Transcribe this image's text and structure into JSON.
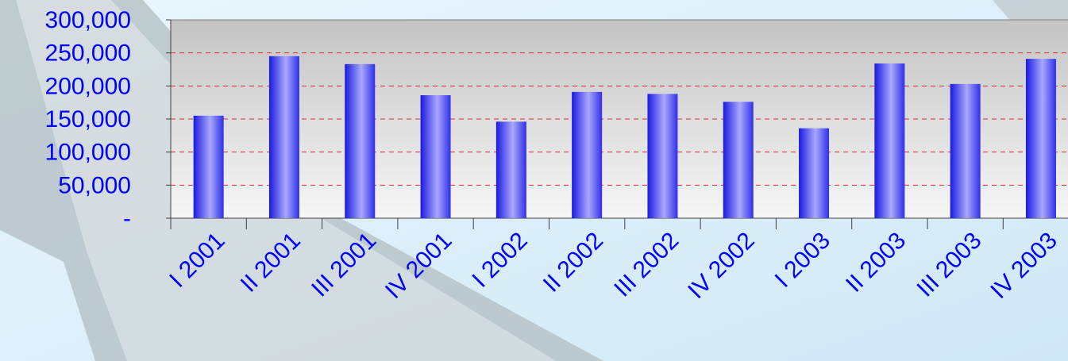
{
  "chart_data": {
    "type": "bar",
    "categories": [
      "I 2001",
      "II 2001",
      "III 2001",
      "IV 2001",
      "I 2002",
      "II 2002",
      "III 2002",
      "IV 2002",
      "I 2003",
      "II 2003",
      "III 2003",
      "IV 2003"
    ],
    "values": [
      155000,
      245000,
      233000,
      186000,
      146000,
      191000,
      188000,
      176000,
      136000,
      234000,
      203000,
      241000
    ],
    "color": "#4040f0",
    "ylim": [
      0,
      300000
    ],
    "yticks": [
      {
        "value": 0,
        "label": "-"
      },
      {
        "value": 50000,
        "label": "50,000"
      },
      {
        "value": 100000,
        "label": "100,000"
      },
      {
        "value": 150000,
        "label": "150,000"
      },
      {
        "value": 200000,
        "label": "200,000"
      },
      {
        "value": 250000,
        "label": "250,000"
      },
      {
        "value": 300000,
        "label": "300,000"
      }
    ],
    "grid": true
  }
}
